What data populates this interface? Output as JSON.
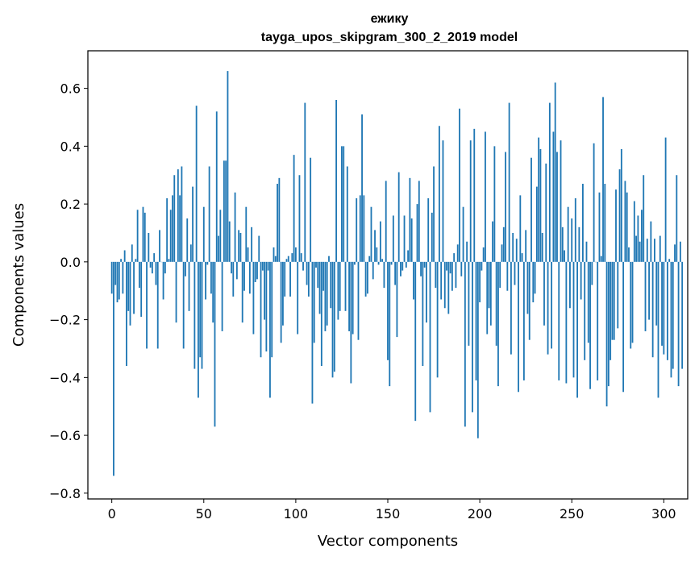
{
  "chart_data": {
    "type": "bar",
    "title": "ежику",
    "subtitle": "tayga_upos_skipgram_300_2_2019 model",
    "xlabel": "Vector components",
    "ylabel": "Components values",
    "xlim": [
      -13,
      313
    ],
    "ylim": [
      -0.82,
      0.73
    ],
    "xticks": [
      0,
      50,
      100,
      150,
      200,
      250,
      300
    ],
    "yticks": [
      -0.8,
      -0.6,
      -0.4,
      -0.2,
      0.0,
      0.2,
      0.4,
      0.6
    ],
    "ytick_labels": [
      "−0.8",
      "−0.6",
      "−0.4",
      "−0.2",
      "0.0",
      "0.2",
      "0.4",
      "0.6"
    ],
    "bar_color": "#1f77b4",
    "series": [
      {
        "name": "ежику",
        "x_start": 0,
        "values": [
          -0.11,
          -0.74,
          -0.08,
          -0.14,
          -0.13,
          0.01,
          -0.11,
          0.04,
          -0.36,
          -0.17,
          -0.22,
          0.06,
          -0.18,
          0.01,
          0.18,
          -0.09,
          -0.19,
          0.19,
          0.17,
          -0.3,
          0.1,
          -0.02,
          -0.04,
          0.03,
          -0.08,
          -0.3,
          0.11,
          0.0,
          -0.13,
          -0.04,
          0.22,
          0.01,
          0.18,
          0.23,
          0.3,
          -0.21,
          0.32,
          0.23,
          0.33,
          -0.3,
          -0.05,
          0.15,
          -0.17,
          0.06,
          0.26,
          -0.37,
          0.54,
          -0.47,
          -0.33,
          -0.37,
          0.19,
          -0.13,
          -0.01,
          0.33,
          -0.11,
          -0.21,
          -0.57,
          0.52,
          0.09,
          0.18,
          -0.24,
          0.35,
          0.35,
          0.66,
          0.14,
          -0.04,
          -0.12,
          0.24,
          -0.06,
          0.11,
          0.1,
          -0.21,
          -0.1,
          0.19,
          0.05,
          -0.11,
          0.12,
          -0.25,
          -0.07,
          -0.06,
          0.09,
          -0.33,
          -0.03,
          -0.2,
          -0.31,
          -0.03,
          -0.47,
          -0.33,
          0.05,
          0.02,
          0.27,
          0.29,
          -0.28,
          -0.22,
          -0.12,
          0.01,
          0.02,
          -0.12,
          0.03,
          0.37,
          0.05,
          -0.25,
          0.3,
          0.03,
          -0.03,
          0.55,
          -0.08,
          -0.12,
          0.36,
          -0.49,
          -0.28,
          -0.02,
          -0.09,
          -0.18,
          -0.36,
          -0.1,
          -0.24,
          -0.22,
          0.02,
          -0.16,
          -0.4,
          -0.38,
          0.56,
          -0.2,
          -0.17,
          0.4,
          0.4,
          -0.17,
          0.33,
          -0.24,
          -0.42,
          -0.25,
          -0.01,
          0.22,
          -0.27,
          0.23,
          0.51,
          0.23,
          -0.12,
          -0.11,
          0.02,
          0.19,
          -0.06,
          0.11,
          0.05,
          -0.01,
          0.14,
          0.01,
          -0.09,
          0.28,
          -0.34,
          -0.43,
          -0.01,
          0.16,
          -0.08,
          -0.26,
          0.31,
          -0.05,
          -0.03,
          0.16,
          -0.02,
          0.04,
          0.29,
          0.15,
          -0.13,
          -0.55,
          0.2,
          0.28,
          -0.05,
          -0.36,
          -0.02,
          -0.21,
          0.22,
          -0.52,
          0.17,
          0.33,
          -0.09,
          -0.4,
          0.47,
          -0.13,
          0.42,
          -0.16,
          -0.03,
          -0.18,
          -0.04,
          -0.1,
          0.03,
          -0.09,
          0.06,
          0.53,
          -0.05,
          0.19,
          -0.57,
          0.07,
          -0.29,
          0.42,
          -0.52,
          0.46,
          -0.41,
          -0.61,
          -0.14,
          -0.03,
          0.05,
          0.45,
          -0.25,
          -0.16,
          -0.22,
          0.14,
          0.4,
          -0.29,
          -0.43,
          -0.09,
          0.06,
          0.12,
          0.38,
          -0.1,
          0.55,
          -0.32,
          0.1,
          -0.08,
          0.08,
          -0.45,
          0.23,
          0.03,
          -0.41,
          0.11,
          -0.18,
          -0.27,
          0.36,
          -0.14,
          -0.11,
          0.26,
          0.43,
          0.39,
          0.1,
          -0.22,
          0.34,
          -0.32,
          0.55,
          -0.3,
          0.45,
          0.62,
          0.38,
          -0.41,
          0.42,
          0.12,
          0.04,
          -0.42,
          0.19,
          -0.16,
          0.15,
          -0.4,
          0.22,
          -0.47,
          0.12,
          -0.13,
          0.27,
          -0.34,
          0.07,
          -0.28,
          -0.44,
          -0.08,
          0.41,
          0.0,
          -0.41,
          0.24,
          0.02,
          0.57,
          0.27,
          -0.5,
          -0.43,
          -0.34,
          -0.27,
          -0.27,
          0.25,
          -0.23,
          0.32,
          0.39,
          -0.45,
          0.28,
          0.24,
          0.05,
          -0.3,
          -0.28,
          0.21,
          0.09,
          0.16,
          0.07,
          0.18,
          0.3,
          -0.24,
          0.08,
          -0.2,
          0.14,
          -0.33,
          0.08,
          -0.22,
          -0.47,
          0.09,
          -0.29,
          -0.32,
          0.43,
          -0.34,
          0.01,
          -0.4,
          -0.37,
          0.06,
          0.3,
          -0.43,
          0.07,
          -0.37
        ]
      }
    ]
  }
}
